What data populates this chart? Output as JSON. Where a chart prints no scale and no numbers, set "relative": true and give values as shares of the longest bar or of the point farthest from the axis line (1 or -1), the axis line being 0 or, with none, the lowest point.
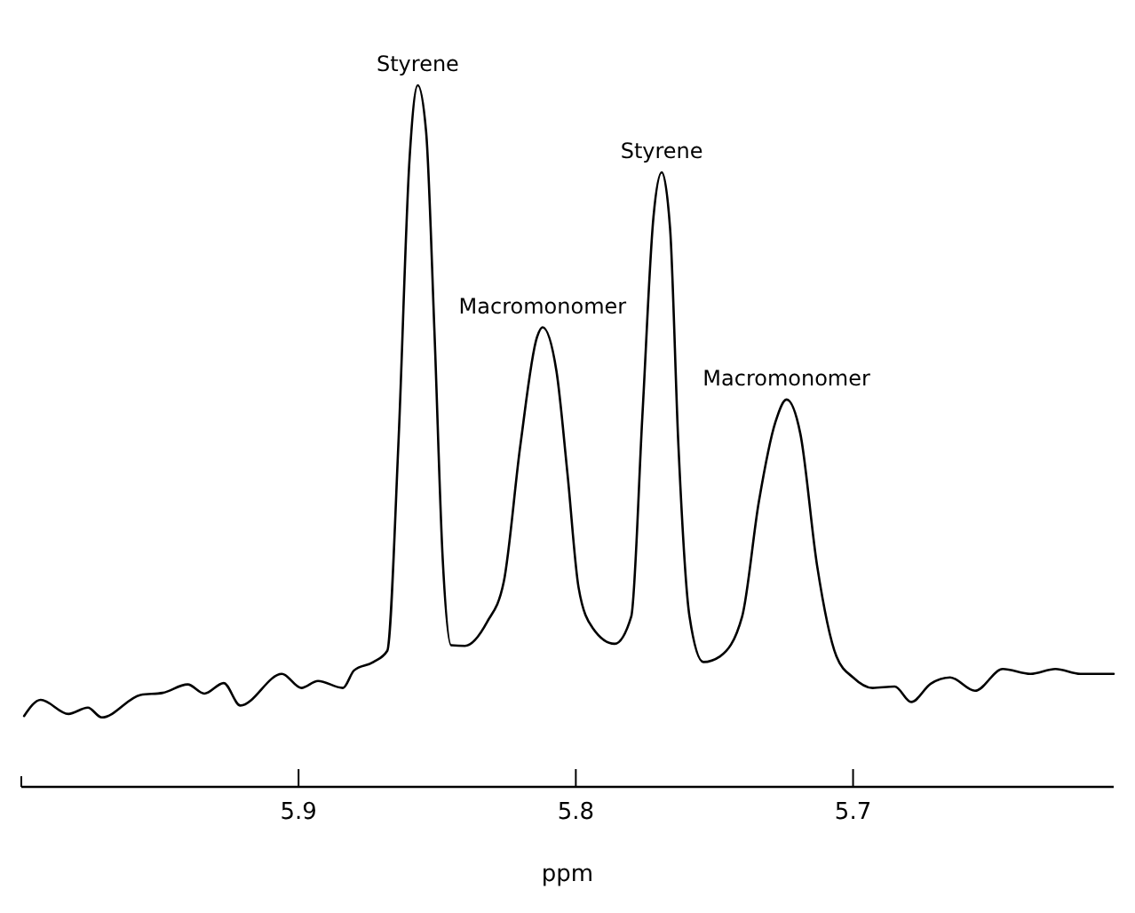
{
  "chart_data": {
    "type": "line",
    "relative": true,
    "xlabel": "ppm",
    "xlim": [
      6.0,
      5.606
    ],
    "xticks": [
      5.9,
      5.8,
      5.7
    ],
    "line_style": "solid",
    "annotations": [
      {
        "text": "Styrene",
        "x": 5.857,
        "y": 1.0
      },
      {
        "text": "Macromonomer",
        "x": 5.812,
        "y": 0.655
      },
      {
        "text": "Styrene",
        "x": 5.769,
        "y": 0.876
      },
      {
        "text": "Macromonomer",
        "x": 5.724,
        "y": 0.552
      }
    ],
    "series": [
      {
        "color": "#000000",
        "x": [
          5.999,
          5.993,
          5.983,
          5.976,
          5.971,
          5.957,
          5.949,
          5.94,
          5.934,
          5.927,
          5.921,
          5.906,
          5.899,
          5.893,
          5.884,
          5.88,
          5.873,
          5.868,
          5.864,
          5.86,
          5.857,
          5.854,
          5.851,
          5.848,
          5.845,
          5.84,
          5.832,
          5.826,
          5.82,
          5.814,
          5.812,
          5.807,
          5.803,
          5.799,
          5.794,
          5.786,
          5.78,
          5.776,
          5.772,
          5.769,
          5.766,
          5.763,
          5.759,
          5.754,
          5.748,
          5.74,
          5.734,
          5.728,
          5.724,
          5.719,
          5.713,
          5.706,
          5.7,
          5.693,
          5.685,
          5.679,
          5.672,
          5.665,
          5.656,
          5.646,
          5.636,
          5.627,
          5.618,
          5.606
        ],
        "values": [
          0.101,
          0.124,
          0.104,
          0.113,
          0.099,
          0.131,
          0.134,
          0.146,
          0.133,
          0.148,
          0.116,
          0.161,
          0.141,
          0.151,
          0.141,
          0.166,
          0.178,
          0.194,
          0.488,
          0.893,
          1.0,
          0.934,
          0.65,
          0.324,
          0.202,
          0.201,
          0.235,
          0.292,
          0.487,
          0.641,
          0.655,
          0.593,
          0.446,
          0.284,
          0.227,
          0.204,
          0.243,
          0.528,
          0.812,
          0.876,
          0.796,
          0.487,
          0.243,
          0.178,
          0.186,
          0.243,
          0.406,
          0.52,
          0.552,
          0.503,
          0.316,
          0.186,
          0.156,
          0.141,
          0.143,
          0.121,
          0.147,
          0.156,
          0.137,
          0.168,
          0.161,
          0.168,
          0.161,
          0.161
        ]
      }
    ]
  }
}
